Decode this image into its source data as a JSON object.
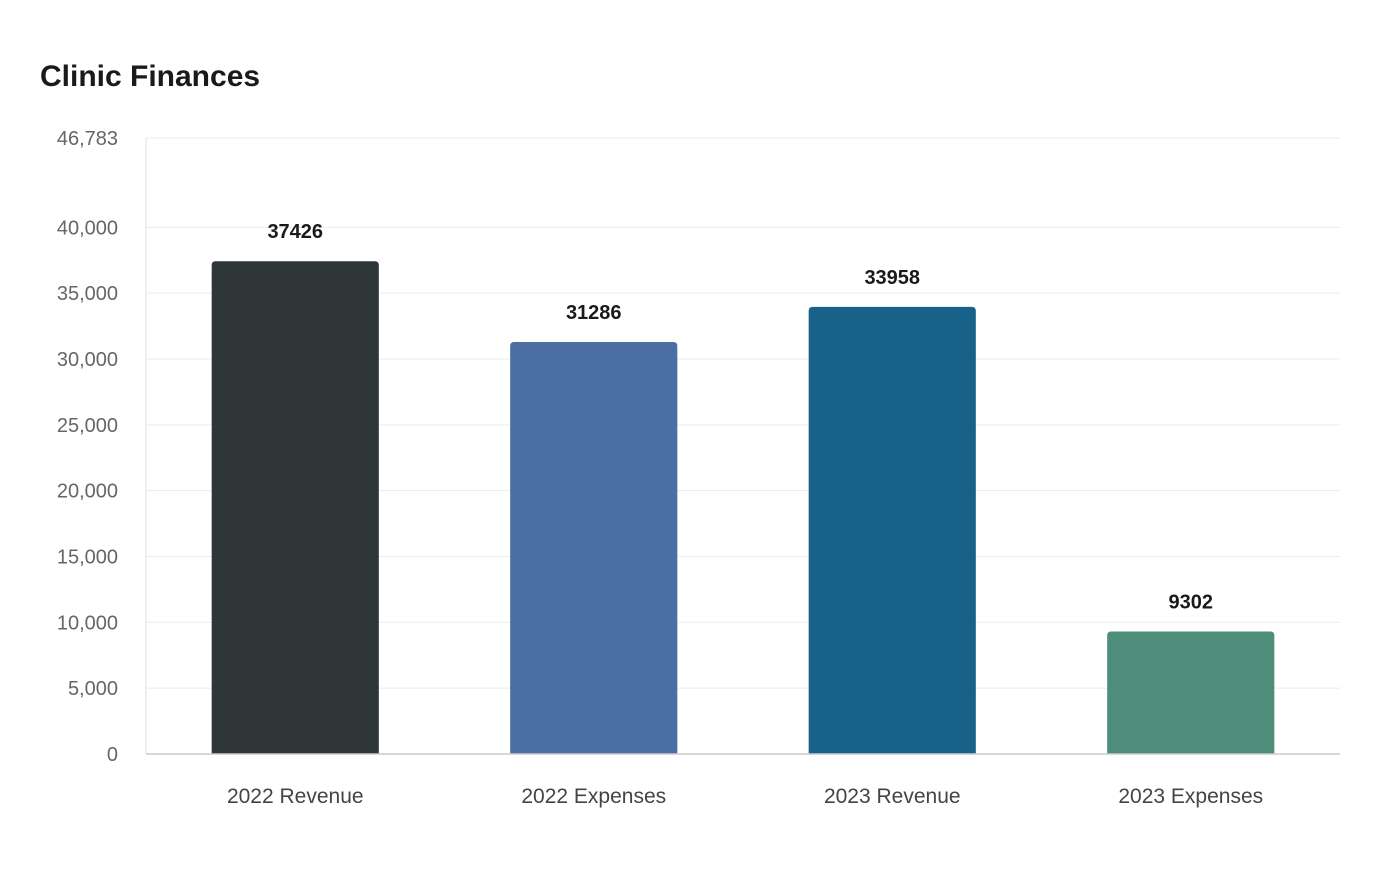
{
  "chart_data": {
    "type": "bar",
    "title": "Clinic Finances",
    "xlabel": "",
    "ylabel": "",
    "categories": [
      "2022 Revenue",
      "2022 Expenses",
      "2023 Revenue",
      "2023 Expenses"
    ],
    "values": [
      37426,
      31286,
      33958,
      9302
    ],
    "data_labels": [
      "37426",
      "31286",
      "33958",
      "9302"
    ],
    "colors": [
      "#2e3638",
      "#4b6ea3",
      "#186289",
      "#4f8d7b"
    ],
    "ylim": [
      0,
      46783
    ],
    "yticks": [
      0,
      5000,
      10000,
      15000,
      20000,
      25000,
      30000,
      35000,
      40000,
      46783
    ],
    "ytick_labels": [
      "0",
      "5,000",
      "10,000",
      "15,000",
      "20,000",
      "25,000",
      "30,000",
      "35,000",
      "40,000",
      "46,783"
    ],
    "grid": true,
    "legend": "none"
  }
}
